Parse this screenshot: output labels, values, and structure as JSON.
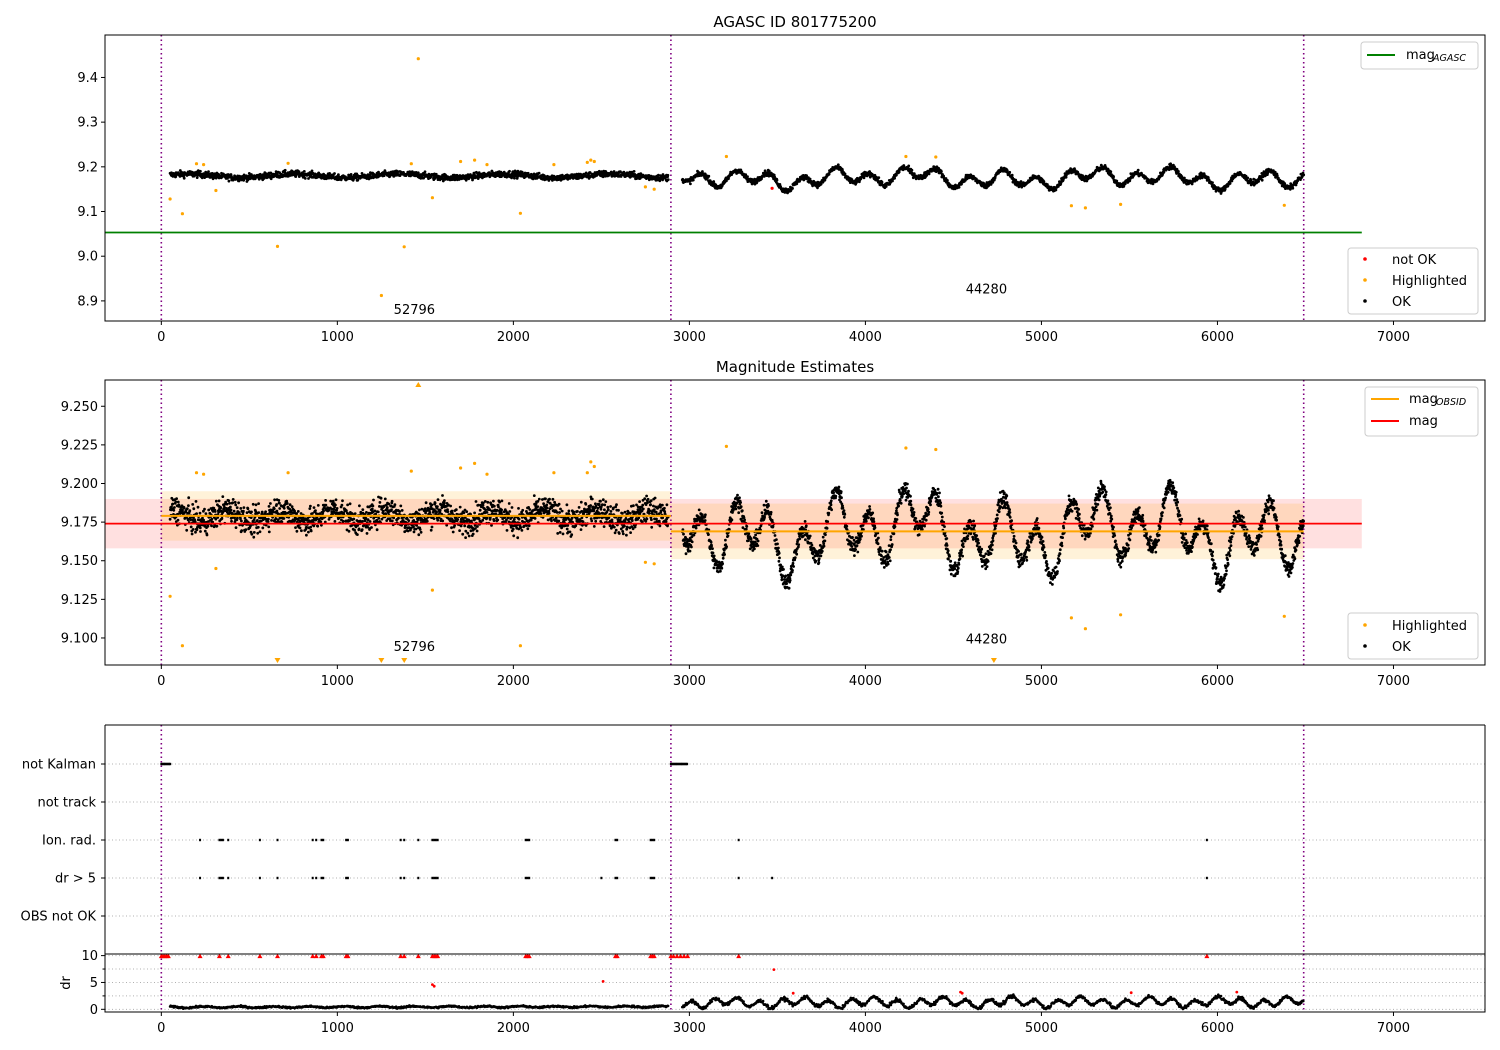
{
  "figure": {
    "title": "AGASC ID 801775200"
  },
  "chart_data": [
    {
      "id": "panel1",
      "type": "scatter",
      "title": "AGASC ID 801775200",
      "xlim": [
        -320,
        7520
      ],
      "ylim": [
        8.855,
        9.495
      ],
      "xticks": [
        0,
        1000,
        2000,
        3000,
        4000,
        5000,
        6000,
        7000
      ],
      "yticks": [
        8.9,
        9.0,
        9.1,
        9.2,
        9.3,
        9.4
      ],
      "ytick_labels": [
        "8.9",
        "9.0",
        "9.1",
        "9.2",
        "9.3",
        "9.4"
      ],
      "obs_boundaries": [
        0,
        2895,
        6490
      ],
      "obs_labels": [
        {
          "text": "52796",
          "x": 1320,
          "y": 8.88
        },
        {
          "text": "44280",
          "x": 4570,
          "y": 8.925
        }
      ],
      "mag_agasc": {
        "y": 9.053,
        "x_range": [
          -320,
          6820
        ],
        "color": "#008000"
      },
      "legend_lines": [
        {
          "label": "mag",
          "sub": "AGASC",
          "color": "#008000"
        }
      ],
      "legend_points": [
        {
          "label": "not OK",
          "color": "#ff0000"
        },
        {
          "label": "Highlighted",
          "color": "#ffa500"
        },
        {
          "label": "OK",
          "color": "#000000"
        }
      ],
      "segments": [
        {
          "x0": 50,
          "x1": 2880,
          "base": [
            9.18,
            9.18
          ],
          "noise": 0.007,
          "waves": [
            [
              0.004,
              600,
              0.0
            ]
          ],
          "step": 2.0
        },
        {
          "x0": 2960,
          "x1": 6490,
          "base": [
            9.175,
            9.175
          ],
          "noise": 0.006,
          "waves": [
            [
              0.014,
              190,
              0.5
            ],
            [
              0.01,
              480,
              1.7
            ],
            [
              0.006,
              1300,
              0.2
            ]
          ],
          "step": 2.0
        }
      ],
      "highlighted": [
        [
          50,
          9.128
        ],
        [
          120,
          9.095
        ],
        [
          200,
          9.207
        ],
        [
          240,
          9.205
        ],
        [
          310,
          9.147
        ],
        [
          660,
          9.022
        ],
        [
          720,
          9.208
        ],
        [
          1250,
          8.912
        ],
        [
          1380,
          9.021
        ],
        [
          1420,
          9.207
        ],
        [
          1460,
          9.442
        ],
        [
          1540,
          9.131
        ],
        [
          1700,
          9.212
        ],
        [
          1780,
          9.215
        ],
        [
          1850,
          9.205
        ],
        [
          2040,
          9.096
        ],
        [
          2230,
          9.205
        ],
        [
          2420,
          9.21
        ],
        [
          2440,
          9.215
        ],
        [
          2460,
          9.212
        ],
        [
          2750,
          9.155
        ],
        [
          2800,
          9.15
        ],
        [
          3210,
          9.223
        ],
        [
          4230,
          9.223
        ],
        [
          4400,
          9.222
        ],
        [
          5170,
          9.113
        ],
        [
          5250,
          9.108
        ],
        [
          5450,
          9.116
        ],
        [
          6380,
          9.114
        ]
      ],
      "notok": [
        [
          3470,
          9.152
        ]
      ]
    },
    {
      "id": "panel2",
      "type": "scatter",
      "title": "Magnitude Estimates",
      "xlim": [
        -320,
        7520
      ],
      "ylim": [
        9.0825,
        9.267
      ],
      "xticks": [
        0,
        1000,
        2000,
        3000,
        4000,
        5000,
        6000,
        7000
      ],
      "yticks": [
        9.1,
        9.125,
        9.15,
        9.175,
        9.2,
        9.225,
        9.25
      ],
      "ytick_labels": [
        "9.100",
        "9.125",
        "9.150",
        "9.175",
        "9.200",
        "9.225",
        "9.250"
      ],
      "obs_boundaries": [
        0,
        2895,
        6490
      ],
      "obs_labels": [
        {
          "text": "52796",
          "x": 1320,
          "y": 9.094
        },
        {
          "text": "44280",
          "x": 4570,
          "y": 9.099
        }
      ],
      "mag": {
        "value": 9.174,
        "band": [
          9.158,
          9.19
        ],
        "x_range": [
          -320,
          6820
        ]
      },
      "mag_obsid": [
        {
          "x0": 0,
          "x1": 2895,
          "value": 9.179,
          "band": [
            9.163,
            9.195
          ]
        },
        {
          "x0": 2895,
          "x1": 6490,
          "value": 9.169,
          "band": [
            9.151,
            9.187
          ]
        }
      ],
      "legend_lines": [
        {
          "label": "mag",
          "sub": "OBSID",
          "color": "#ffa500"
        },
        {
          "label": "mag",
          "sub": "",
          "color": "#ff0000"
        }
      ],
      "legend_points": [
        {
          "label": "Highlighted",
          "color": "#ffa500"
        },
        {
          "label": "OK",
          "color": "#000000"
        }
      ],
      "segments": [
        {
          "x0": 50,
          "x1": 2880,
          "base": [
            9.179,
            9.179
          ],
          "noise": 0.0085,
          "waves": [
            [
              0.004,
              300,
              0.0
            ]
          ],
          "step": 1.6
        },
        {
          "x0": 2960,
          "x1": 6490,
          "base": [
            9.169,
            9.169
          ],
          "noise": 0.0055,
          "waves": [
            [
              0.016,
              190,
              0.5
            ],
            [
              0.012,
              480,
              1.7
            ],
            [
              0.007,
              1300,
              0.2
            ]
          ],
          "step": 1.6
        }
      ],
      "highlighted": [
        [
          50,
          9.127
        ],
        [
          120,
          9.095
        ],
        [
          200,
          9.207
        ],
        [
          240,
          9.206
        ],
        [
          310,
          9.145
        ],
        [
          720,
          9.207
        ],
        [
          1420,
          9.208
        ],
        [
          1540,
          9.131
        ],
        [
          1700,
          9.21
        ],
        [
          1780,
          9.213
        ],
        [
          1850,
          9.206
        ],
        [
          2040,
          9.095
        ],
        [
          2230,
          9.207
        ],
        [
          2420,
          9.207
        ],
        [
          2440,
          9.214
        ],
        [
          2460,
          9.211
        ],
        [
          2750,
          9.149
        ],
        [
          2800,
          9.148
        ],
        [
          3210,
          9.224
        ],
        [
          4230,
          9.223
        ],
        [
          4400,
          9.222
        ],
        [
          5170,
          9.113
        ],
        [
          5250,
          9.106
        ],
        [
          5450,
          9.115
        ],
        [
          6380,
          9.114
        ]
      ],
      "offscale_low": [
        660,
        1250,
        1380,
        4730
      ],
      "offscale_high": [
        1460
      ]
    },
    {
      "id": "panel3",
      "type": "scatter",
      "xlim": [
        -320,
        7520
      ],
      "category_labels": [
        "not Kalman",
        "not track",
        "Ion. rad.",
        "dr > 5",
        "OBS not OK"
      ],
      "obs_boundaries": [
        0,
        2895,
        6490
      ],
      "flags": {
        "not Kalman": {
          "runs": [
            [
              0,
              50
            ],
            [
              2895,
              2990
            ]
          ]
        },
        "not track": {
          "runs": []
        },
        "Ion. rad.": {
          "points": [
            220,
            330,
            340,
            350,
            380,
            560,
            660,
            860,
            880,
            910,
            920,
            1050,
            1060,
            1360,
            1380,
            1460,
            1540,
            1550,
            1560,
            1570,
            2070,
            2080,
            2090,
            2580,
            2590,
            2780,
            2790,
            2800,
            3280,
            5940
          ]
        },
        "dr > 5": {
          "points": [
            220,
            330,
            340,
            350,
            380,
            560,
            660,
            860,
            880,
            910,
            920,
            1050,
            1060,
            1360,
            1380,
            1460,
            1540,
            1550,
            1560,
            1570,
            2070,
            2080,
            2090,
            2500,
            2580,
            2590,
            2780,
            2790,
            2800,
            3280,
            3470,
            5940
          ]
        },
        "OBS not OK": {
          "runs": []
        }
      }
    },
    {
      "id": "panel4",
      "type": "scatter",
      "ylabel": "dr",
      "xlim": [
        -320,
        7520
      ],
      "ylim": [
        -0.5,
        10.3
      ],
      "yticks": [
        0,
        5,
        10
      ],
      "minor_yticks": [
        2.5,
        7.5
      ],
      "xticks": [
        0,
        1000,
        2000,
        3000,
        4000,
        5000,
        6000,
        7000
      ],
      "obs_boundaries": [
        0,
        2895,
        6490
      ],
      "segments": [
        {
          "x0": 50,
          "x1": 2880,
          "base": [
            0.4,
            0.5
          ],
          "noise": 0.15,
          "waves": [
            [
              0.12,
              200,
              0.3
            ]
          ],
          "step": 3.0
        },
        {
          "x0": 2960,
          "x1": 6490,
          "base": [
            1.2,
            1.4
          ],
          "noise": 0.3,
          "waves": [
            [
              0.7,
              130,
              0.5
            ],
            [
              0.4,
              400,
              1.1
            ]
          ],
          "step": 3.0
        }
      ],
      "red_top": [
        0,
        10,
        20,
        30,
        40,
        220,
        330,
        380,
        560,
        660,
        860,
        880,
        910,
        920,
        1050,
        1060,
        1360,
        1380,
        1460,
        1540,
        1550,
        1560,
        1570,
        2070,
        2080,
        2090,
        2580,
        2590,
        2780,
        2790,
        2800,
        2895,
        2910,
        2930,
        2950,
        2970,
        2990,
        3280,
        5940
      ],
      "red_other": [
        [
          1540,
          4.6
        ],
        [
          1550,
          4.3
        ],
        [
          2510,
          5.2
        ],
        [
          3480,
          7.4
        ],
        [
          3590,
          3.0
        ],
        [
          4540,
          3.2
        ],
        [
          4550,
          3.0
        ],
        [
          5510,
          3.1
        ],
        [
          6110,
          3.2
        ]
      ]
    }
  ]
}
